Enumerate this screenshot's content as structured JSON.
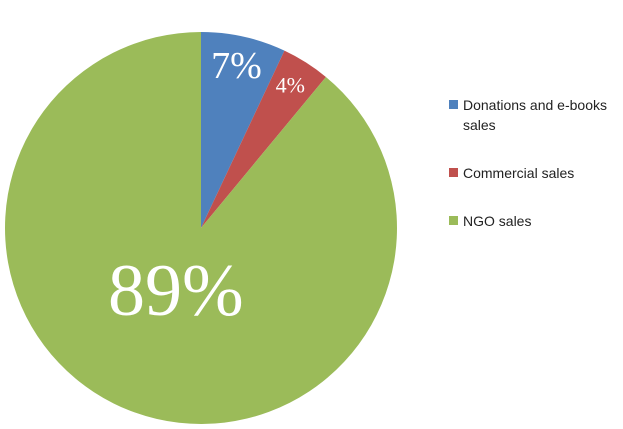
{
  "chart_data": {
    "type": "pie",
    "categories": [
      "Donations and e-books sales",
      "Commercial sales",
      "NGO sales"
    ],
    "values": [
      7,
      4,
      89
    ],
    "value_labels": [
      "7%",
      "4%",
      "89%"
    ],
    "colors": [
      "#4f81bd",
      "#c0504d",
      "#9bbb59"
    ],
    "legend": "right"
  }
}
